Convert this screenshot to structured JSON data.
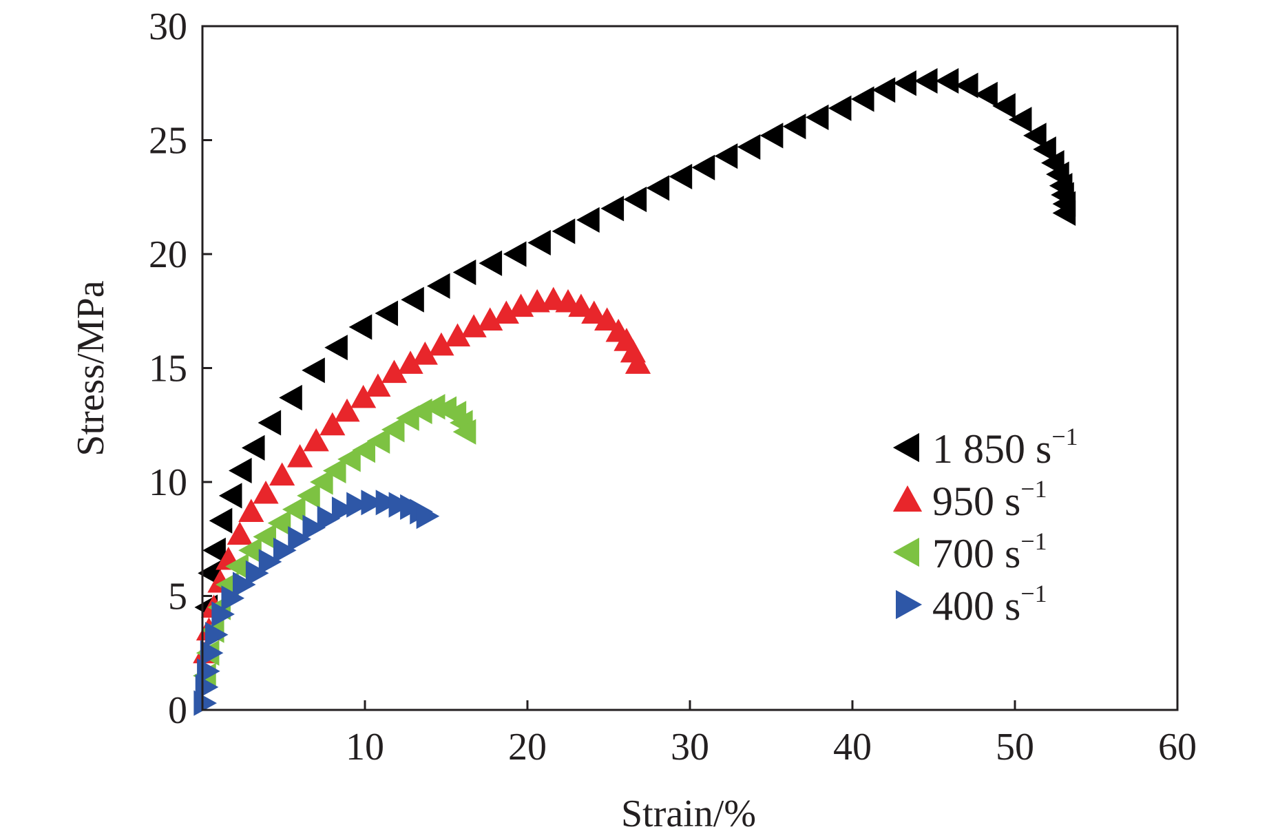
{
  "chart_data": {
    "type": "scatter",
    "title": "",
    "xlabel": "Strain/%",
    "ylabel": "Stress/MPa",
    "xlim": [
      0,
      60
    ],
    "ylim": [
      0,
      30
    ],
    "x_ticks": [
      10,
      20,
      30,
      40,
      50,
      60
    ],
    "y_ticks": [
      0,
      5,
      10,
      15,
      20,
      25,
      30
    ],
    "grid": false,
    "legend_position": "center-right",
    "series": [
      {
        "name": "1 850 s",
        "superscript": "−1",
        "marker": "triangle-left",
        "color": "#000000",
        "points": [
          [
            0.3,
            4.5
          ],
          [
            0.5,
            6.0
          ],
          [
            0.8,
            7.0
          ],
          [
            1.2,
            8.3
          ],
          [
            1.8,
            9.4
          ],
          [
            2.4,
            10.5
          ],
          [
            3.2,
            11.5
          ],
          [
            4.2,
            12.6
          ],
          [
            5.5,
            13.7
          ],
          [
            6.9,
            14.9
          ],
          [
            8.3,
            15.9
          ],
          [
            9.8,
            16.8
          ],
          [
            11.4,
            17.4
          ],
          [
            13.0,
            18.0
          ],
          [
            14.6,
            18.6
          ],
          [
            16.2,
            19.2
          ],
          [
            17.8,
            19.6
          ],
          [
            19.3,
            20.0
          ],
          [
            20.8,
            20.5
          ],
          [
            22.3,
            21.0
          ],
          [
            23.8,
            21.5
          ],
          [
            25.3,
            22.0
          ],
          [
            26.7,
            22.4
          ],
          [
            28.1,
            22.9
          ],
          [
            29.5,
            23.4
          ],
          [
            30.9,
            23.8
          ],
          [
            32.3,
            24.3
          ],
          [
            33.7,
            24.7
          ],
          [
            35.1,
            25.2
          ],
          [
            36.5,
            25.6
          ],
          [
            37.9,
            26.0
          ],
          [
            39.3,
            26.4
          ],
          [
            40.7,
            26.8
          ],
          [
            42.0,
            27.2
          ],
          [
            43.3,
            27.5
          ],
          [
            44.6,
            27.6
          ],
          [
            45.9,
            27.6
          ],
          [
            47.1,
            27.4
          ],
          [
            48.3,
            27.0
          ],
          [
            49.4,
            26.5
          ],
          [
            50.4,
            25.9
          ],
          [
            51.3,
            25.2
          ],
          [
            51.9,
            24.6
          ],
          [
            52.4,
            24.0
          ],
          [
            52.7,
            23.5
          ],
          [
            52.9,
            23.0
          ],
          [
            53.0,
            22.6
          ],
          [
            53.1,
            22.2
          ],
          [
            53.1,
            21.8
          ]
        ]
      },
      {
        "name": "950 s",
        "superscript": "−1",
        "marker": "triangle-up",
        "color": "#e8262b",
        "points": [
          [
            0.2,
            2.5
          ],
          [
            0.4,
            3.5
          ],
          [
            0.7,
            4.5
          ],
          [
            1.1,
            5.6
          ],
          [
            1.6,
            6.6
          ],
          [
            2.3,
            7.7
          ],
          [
            3.0,
            8.7
          ],
          [
            3.9,
            9.5
          ],
          [
            4.9,
            10.3
          ],
          [
            6.0,
            11.1
          ],
          [
            7.0,
            11.8
          ],
          [
            8.0,
            12.5
          ],
          [
            8.9,
            13.1
          ],
          [
            9.9,
            13.7
          ],
          [
            10.8,
            14.2
          ],
          [
            11.8,
            14.8
          ],
          [
            12.8,
            15.2
          ],
          [
            13.7,
            15.6
          ],
          [
            14.7,
            16.0
          ],
          [
            15.7,
            16.4
          ],
          [
            16.7,
            16.8
          ],
          [
            17.7,
            17.1
          ],
          [
            18.7,
            17.4
          ],
          [
            19.6,
            17.7
          ],
          [
            20.6,
            17.9
          ],
          [
            21.6,
            18.0
          ],
          [
            22.5,
            17.9
          ],
          [
            23.3,
            17.7
          ],
          [
            24.1,
            17.4
          ],
          [
            24.9,
            17.1
          ],
          [
            25.6,
            16.6
          ],
          [
            26.1,
            16.2
          ],
          [
            26.5,
            15.7
          ],
          [
            26.8,
            15.2
          ]
        ]
      },
      {
        "name": "700 s",
        "superscript": "−1",
        "marker": "triangle-left",
        "color": "#7dc242",
        "points": [
          [
            0.2,
            1.5
          ],
          [
            0.4,
            2.5
          ],
          [
            0.7,
            3.5
          ],
          [
            1.1,
            4.5
          ],
          [
            1.6,
            5.5
          ],
          [
            2.2,
            6.3
          ],
          [
            3.0,
            7.0
          ],
          [
            3.9,
            7.6
          ],
          [
            4.8,
            8.2
          ],
          [
            5.7,
            8.8
          ],
          [
            6.6,
            9.4
          ],
          [
            7.4,
            10.0
          ],
          [
            8.2,
            10.5
          ],
          [
            9.1,
            11.0
          ],
          [
            10.0,
            11.4
          ],
          [
            10.9,
            11.8
          ],
          [
            11.8,
            12.3
          ],
          [
            12.7,
            12.8
          ],
          [
            13.5,
            13.1
          ],
          [
            14.3,
            13.3
          ],
          [
            15.0,
            13.2
          ],
          [
            15.6,
            13.0
          ],
          [
            16.0,
            12.6
          ],
          [
            16.2,
            12.2
          ]
        ]
      },
      {
        "name": "400 s",
        "superscript": "−1",
        "marker": "triangle-right",
        "color": "#2e57a7",
        "points": [
          [
            0.1,
            0.3
          ],
          [
            0.2,
            1.0
          ],
          [
            0.3,
            1.7
          ],
          [
            0.5,
            2.5
          ],
          [
            0.8,
            3.3
          ],
          [
            1.2,
            4.2
          ],
          [
            1.8,
            4.9
          ],
          [
            2.5,
            5.5
          ],
          [
            3.3,
            6.0
          ],
          [
            4.1,
            6.5
          ],
          [
            5.0,
            7.0
          ],
          [
            5.9,
            7.5
          ],
          [
            6.8,
            8.0
          ],
          [
            7.7,
            8.4
          ],
          [
            8.6,
            8.8
          ],
          [
            9.5,
            9.0
          ],
          [
            10.4,
            9.1
          ],
          [
            11.3,
            9.1
          ],
          [
            12.1,
            9.0
          ],
          [
            12.8,
            8.9
          ],
          [
            13.4,
            8.7
          ],
          [
            13.8,
            8.5
          ]
        ]
      }
    ]
  }
}
